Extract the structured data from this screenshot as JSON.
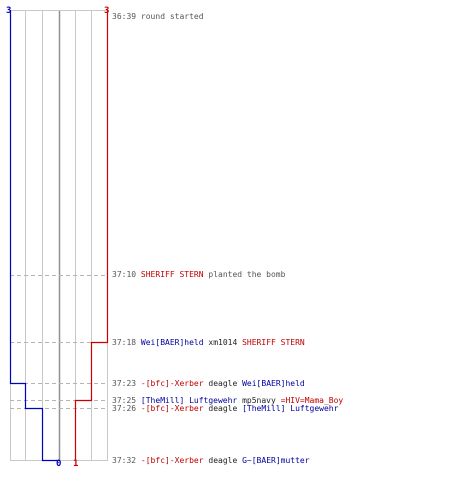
{
  "colors": {
    "team_blue": "#0000c0",
    "team_red": "#cc0000",
    "grid": "#c8c8c8",
    "dash": "#b4b4b4",
    "center": "#909090",
    "time": "#555555"
  },
  "scores": {
    "blue_top": "3",
    "red_top": "3",
    "blue_bottom": "0",
    "red_bottom": "1"
  },
  "events": [
    {
      "time": "36:39",
      "text": "round started"
    },
    {
      "time": "37:10",
      "player": "SHERIFF STERN",
      "action": "planted the bomb"
    },
    {
      "time": "37:18",
      "killer": "Wei[BAER]held",
      "weapon": "xm1014",
      "victim": "SHERIFF STERN"
    },
    {
      "time": "37:23",
      "killer": "-[bfc]-Xerber",
      "weapon": "deagle",
      "victim": "Wei[BAER]held"
    },
    {
      "time": "37:25",
      "killer": "[TheMill] Luftgewehr",
      "weapon": "mp5navy",
      "victim": "=HIV=Mama_Boy"
    },
    {
      "time": "37:26",
      "killer": "-[bfc]-Xerber",
      "weapon": "deagle",
      "victim": "[TheMill] Luftgewehr"
    },
    {
      "time": "37:32",
      "killer": "-[bfc]-Xerber",
      "weapon": "deagle",
      "victim": "G~[BAER]mutter"
    }
  ]
}
